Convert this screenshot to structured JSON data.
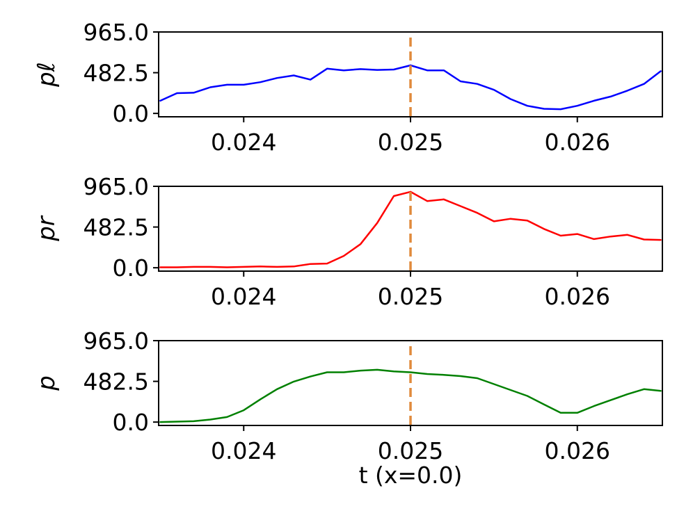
{
  "chart_data": {
    "type": "line",
    "xlabel": "t (x=0.0)",
    "xlim": [
      0.02349,
      0.02651
    ],
    "xticks": [
      0.024,
      0.025,
      0.026
    ],
    "xtick_labels": [
      "0.024",
      "0.025",
      "0.026"
    ],
    "marker_line": {
      "x": 0.025,
      "color": "#e08a3c",
      "style": "dashed"
    },
    "panels": [
      {
        "ylabel": "pℓ",
        "ylim": [
          -40,
          965
        ],
        "yticks": [
          0.0,
          482.5,
          965.0
        ],
        "ytick_labels": [
          "0.0",
          "482.5",
          "965.0"
        ],
        "color": "#0000ff",
        "x": [
          0.0235,
          0.0236,
          0.0237,
          0.0238,
          0.0239,
          0.024,
          0.0241,
          0.0242,
          0.0243,
          0.0244,
          0.0245,
          0.0246,
          0.0247,
          0.0248,
          0.0249,
          0.025,
          0.0251,
          0.0252,
          0.0253,
          0.0254,
          0.0255,
          0.0256,
          0.0257,
          0.0258,
          0.0259,
          0.026,
          0.0261,
          0.0262,
          0.0263,
          0.0264,
          0.0265
        ],
        "y": [
          150,
          240,
          245,
          310,
          340,
          340,
          370,
          420,
          450,
          400,
          530,
          510,
          525,
          515,
          520,
          570,
          510,
          510,
          380,
          350,
          280,
          170,
          90,
          55,
          50,
          90,
          150,
          200,
          270,
          350,
          500
        ]
      },
      {
        "ylabel": "pr",
        "ylim": [
          -40,
          965
        ],
        "yticks": [
          0.0,
          482.5,
          965.0
        ],
        "ytick_labels": [
          "0.0",
          "482.5",
          "965.0"
        ],
        "color": "#ff0000",
        "x": [
          0.0235,
          0.0236,
          0.0237,
          0.0238,
          0.0239,
          0.024,
          0.0241,
          0.0242,
          0.0243,
          0.0244,
          0.0245,
          0.0246,
          0.0247,
          0.0248,
          0.0249,
          0.025,
          0.0251,
          0.0252,
          0.0253,
          0.0254,
          0.0255,
          0.0256,
          0.0257,
          0.0258,
          0.0259,
          0.026,
          0.0261,
          0.0262,
          0.0263,
          0.0264,
          0.0265
        ],
        "y": [
          5,
          5,
          10,
          10,
          5,
          10,
          15,
          10,
          15,
          45,
          50,
          140,
          280,
          530,
          850,
          900,
          790,
          810,
          730,
          650,
          550,
          580,
          560,
          460,
          380,
          400,
          340,
          370,
          390,
          335,
          330
        ]
      },
      {
        "ylabel": "p",
        "ylim": [
          -40,
          965
        ],
        "yticks": [
          0.0,
          482.5,
          965.0
        ],
        "ytick_labels": [
          "0.0",
          "482.5",
          "965.0"
        ],
        "color": "#008000",
        "x": [
          0.0235,
          0.0236,
          0.0237,
          0.0238,
          0.0239,
          0.024,
          0.0241,
          0.0242,
          0.0243,
          0.0244,
          0.0245,
          0.0246,
          0.0247,
          0.0248,
          0.0249,
          0.025,
          0.0251,
          0.0252,
          0.0253,
          0.0254,
          0.0255,
          0.0256,
          0.0257,
          0.0258,
          0.0259,
          0.026,
          0.0261,
          0.0262,
          0.0263,
          0.0264,
          0.0265
        ],
        "y": [
          0,
          5,
          10,
          30,
          60,
          140,
          270,
          390,
          480,
          540,
          590,
          590,
          610,
          620,
          600,
          590,
          570,
          560,
          545,
          520,
          450,
          380,
          310,
          210,
          110,
          110,
          190,
          260,
          330,
          390,
          370
        ]
      }
    ]
  }
}
